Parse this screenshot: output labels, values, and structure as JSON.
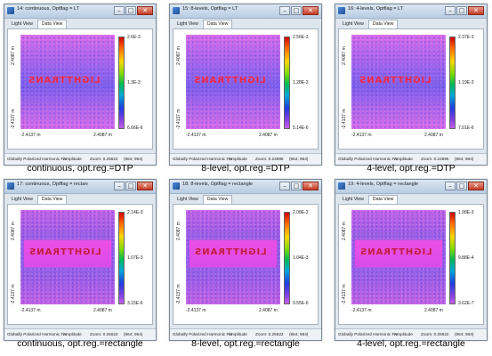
{
  "tabs": {
    "light": "Light View",
    "data": "Data View"
  },
  "status": {
    "field": "Globally Polarized Harmonic Fie",
    "mode": "Amplitude"
  },
  "axes": {
    "x_left": "-2.4137 m",
    "x_right": "2.4087 m",
    "y_top": "2.4087 m",
    "y_bottom": "-2.4137 m"
  },
  "logo_text": "LIGHTTRANS",
  "windows": [
    {
      "title": "14: continuous, Optflag = LT",
      "cb_top": "2.6E-3",
      "cb_mid": "1.3E-3",
      "cb_bottom": "6.66E-6",
      "zoom": "Zoom: 0.25622",
      "size": "(964; 964)",
      "caption": "continuous, opt.reg.=DTP"
    },
    {
      "title": "15: 8-levels, Optflag = LT",
      "cb_top": "2.56E-3",
      "cb_mid": "1.28E-3",
      "cb_bottom": "5.14E-6",
      "zoom": "Zoom: 0.24896",
      "size": "(964; 964)",
      "caption": "8-level, opt.reg.=DTP"
    },
    {
      "title": "16: 4-levels, Optflag = LT",
      "cb_top": "2.37E-3",
      "cb_mid": "1.19E-3",
      "cb_bottom": "7.01E-6",
      "zoom": "Zoom: 0.24896",
      "size": "(964; 964)",
      "caption": "4-level, opt.reg.=DTP"
    },
    {
      "title": "17: continuous, Optflag = rectangle",
      "cb_top": "2.14E-3",
      "cb_mid": "1.07E-3",
      "cb_bottom": "3.15E-6",
      "zoom": "Zoom: 0.25622",
      "size": "(964; 964)",
      "caption": "continuous, opt.reg.=rectangle"
    },
    {
      "title": "18: 8-levels, Optflag = rectangle",
      "cb_top": "2.08E-3",
      "cb_mid": "1.04E-3",
      "cb_bottom": "9.55E-6",
      "zoom": "Zoom: 0.25622",
      "size": "(964; 964)",
      "caption": "8-level, opt.reg.=rectangle"
    },
    {
      "title": "19: 4-levels, Optflag = rectangle",
      "cb_top": "1.98E-3",
      "cb_mid": "9.88E-4",
      "cb_bottom": "3.62E-7",
      "zoom": "Zoom: 0.25622",
      "size": "(964; 964)",
      "caption": "4-level, opt.reg.=rectangle"
    }
  ]
}
